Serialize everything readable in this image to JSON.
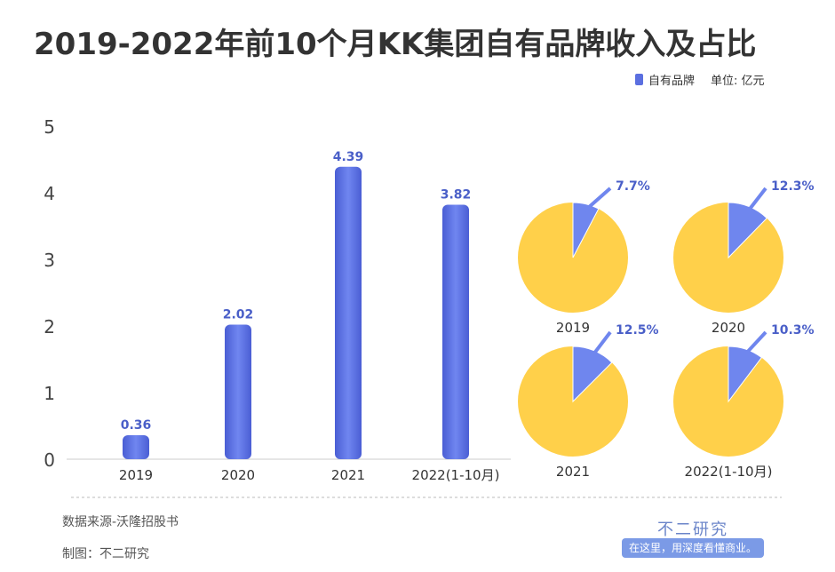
{
  "title": "2019-2022年前10个月KK集团自有品牌收入及占比",
  "legend": {
    "series": "自有品牌",
    "unit": "单位: 亿元"
  },
  "footer": {
    "source": "数据来源-沃隆招股书",
    "maker": "制图：不二研究",
    "brand": "不二研究",
    "slogan": "在这里，用深度看懂商业。"
  },
  "colors": {
    "bar": "#5b6fe0",
    "pie": "#ffd04a",
    "slice": "#6f86ee",
    "label": "#4a5fc8"
  },
  "chart_data": [
    {
      "type": "bar",
      "title": "",
      "xlabel": "",
      "ylabel": "",
      "ylim": [
        0,
        5
      ],
      "yticks": [
        "0",
        "1",
        "2",
        "3",
        "4",
        "5"
      ],
      "categories": [
        "2019",
        "2020",
        "2021",
        "2022(1-10月)"
      ],
      "values": [
        0.36,
        2.02,
        4.39,
        3.82
      ],
      "labels": [
        "0.36",
        "2.02",
        "4.39",
        "3.82"
      ]
    },
    {
      "type": "pie",
      "categories": [
        "2019",
        "2020",
        "2021",
        "2022(1-10月)"
      ],
      "values": [
        7.7,
        12.3,
        12.5,
        10.3
      ],
      "labels": [
        "7.7%",
        "12.3%",
        "12.5%",
        "10.3%"
      ]
    }
  ]
}
